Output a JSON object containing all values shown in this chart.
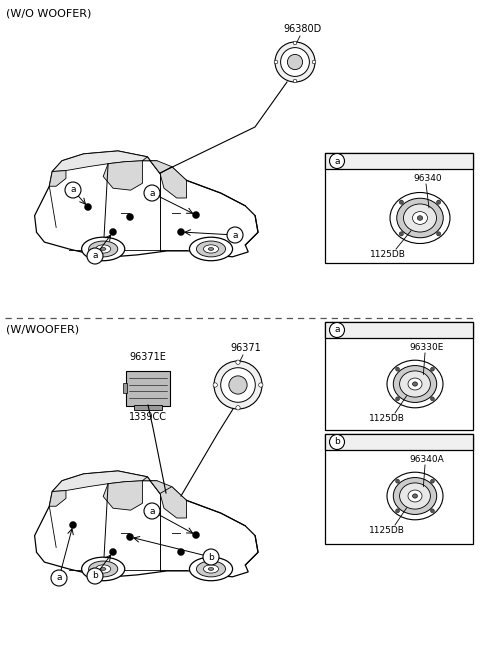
{
  "bg_color": "#ffffff",
  "line_color": "#000000",
  "section1_label": "(W/O WOOFER)",
  "section2_label": "(W/WOOFER)",
  "part_96380D": "96380D",
  "part_96340": "96340",
  "part_1125DB": "1125DB",
  "part_96371E": "96371E",
  "part_96371": "96371",
  "part_1339CC": "1339CC",
  "part_96330E": "96330E",
  "part_96340A": "96340A",
  "label_a": "a",
  "label_b": "b",
  "fig_width": 4.8,
  "fig_height": 6.55,
  "dpi": 100
}
